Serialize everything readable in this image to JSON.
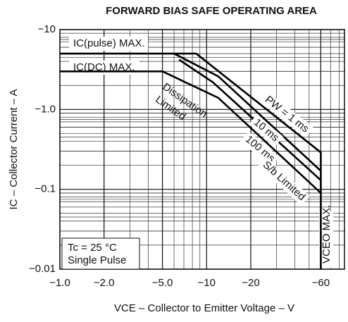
{
  "chart_data": {
    "type": "line",
    "title": "FORWARD BIAS SAFE OPERATING AREA",
    "x_label": "VCE – Collector to Emitter Voltage – V",
    "y_label": "IC – Collector Current – A",
    "xscale": "log",
    "yscale": "log",
    "grid": true,
    "minor_grid": true,
    "xlim": [
      -1,
      -88
    ],
    "ylim": [
      -0.01,
      -10
    ],
    "xticks": [
      {
        "value": -1,
        "label": "−1.0"
      },
      {
        "value": -2,
        "label": "−2.0"
      },
      {
        "value": -5,
        "label": "−5.0"
      },
      {
        "value": -10,
        "label": "−10"
      },
      {
        "value": -20,
        "label": "−20"
      },
      {
        "value": -60,
        "label": "−60"
      }
    ],
    "yticks": [
      {
        "value": -10,
        "label": "−10"
      },
      {
        "value": -1,
        "label": "−1.0"
      },
      {
        "value": -0.1,
        "label": "−0.1"
      },
      {
        "value": -0.01,
        "label": "−0.01"
      }
    ],
    "series": [
      {
        "name": "PW = 1 ms",
        "color": "#000000",
        "x": [
          -1,
          -8.5,
          -60,
          -60
        ],
        "values": [
          -5,
          -5,
          -0.29,
          -0.01
        ]
      },
      {
        "name": "10 ms",
        "color": "#000000",
        "x": [
          -6,
          -12,
          -60
        ],
        "values": [
          -5,
          -2.6,
          -0.17
        ]
      },
      {
        "name": "100 ms",
        "color": "#000000",
        "x": [
          -6.5,
          -11,
          -60
        ],
        "values": [
          -4.2,
          -2.2,
          -0.13
        ]
      },
      {
        "name": "S/b Limited",
        "color": "#000000",
        "x": [
          -1,
          -5,
          -12,
          -60
        ],
        "values": [
          -3,
          -3,
          -1.4,
          -0.09
        ]
      }
    ],
    "annotations": [
      {
        "text": "IC(pulse) MAX."
      },
      {
        "text": "IC(DC) MAX."
      },
      {
        "text": "Dissipation"
      },
      {
        "text": "Limited"
      },
      {
        "text": "VCEO MAX."
      },
      {
        "text": "Tc = 25 °C"
      },
      {
        "text": "Single Pulse"
      }
    ]
  }
}
